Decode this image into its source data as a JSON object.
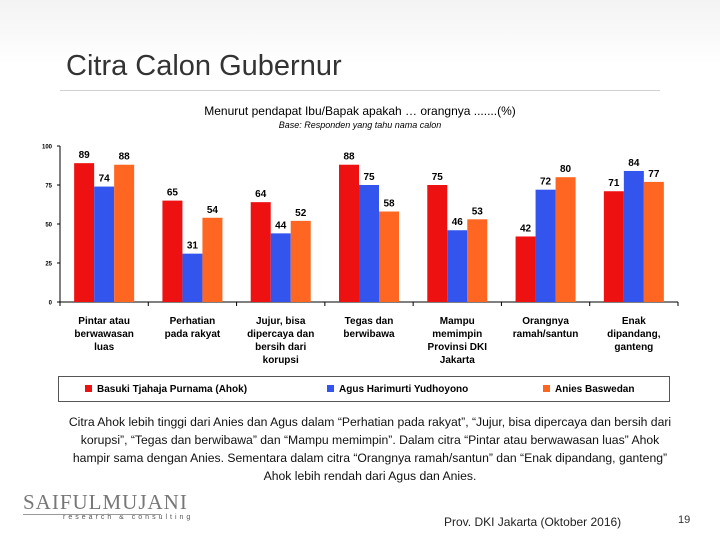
{
  "slide": {
    "title": "Citra Calon Gubernur",
    "note": "Citra Ahok lebih tinggi dari Anies dan Agus dalam “Perhatian pada rakyat”, “Jujur, bisa dipercaya dan bersih dari korupsi”, “Tegas dan berwibawa” dan “Mampu memimpin”. Dalam citra “Pintar atau berwawasan luas” Ahok hampir sama dengan Anies. Sementara dalam citra “Orangnya ramah/santun” dan “Enak dipandang, ganteng” Ahok lebih rendah dari Agus dan Anies.",
    "footer": "Prov. DKI Jakarta (Oktober 2016)",
    "page_number": "19",
    "logo_main": "SAIFULMUJANI",
    "logo_sub": "research & consulting"
  },
  "chart_data": {
    "type": "bar",
    "title": "Menurut pendapat Ibu/Bapak apakah … orangnya .......(%)",
    "subtitle": "Base: Responden yang tahu nama calon",
    "categories": [
      [
        "Pintar atau",
        "berwawasan",
        "luas"
      ],
      [
        "Perhatian",
        "pada rakyat"
      ],
      [
        "Jujur, bisa",
        "dipercaya dan",
        "bersih dari",
        "korupsi"
      ],
      [
        "Tegas dan",
        "berwibawa"
      ],
      [
        "Mampu",
        "memimpin",
        "Provinsi DKI",
        "Jakarta"
      ],
      [
        "Orangnya",
        "ramah/santun"
      ],
      [
        "Enak",
        "dipandang,",
        "ganteng"
      ]
    ],
    "series": [
      {
        "name": "Basuki Tjahaja Purnama (Ahok)",
        "color": "#ee1111",
        "values": [
          89,
          65,
          64,
          88,
          75,
          42,
          71
        ]
      },
      {
        "name": "Agus Harimurti Yudhoyono",
        "color": "#3355ee",
        "values": [
          74,
          31,
          44,
          75,
          46,
          72,
          84
        ]
      },
      {
        "name": "Anies Baswedan",
        "color": "#ff6622",
        "values": [
          88,
          54,
          52,
          58,
          53,
          80,
          77
        ]
      }
    ],
    "yticks": [
      0,
      25,
      50,
      75,
      100
    ],
    "ylim": [
      0,
      100
    ],
    "legend_position": "bottom",
    "grid": false
  }
}
